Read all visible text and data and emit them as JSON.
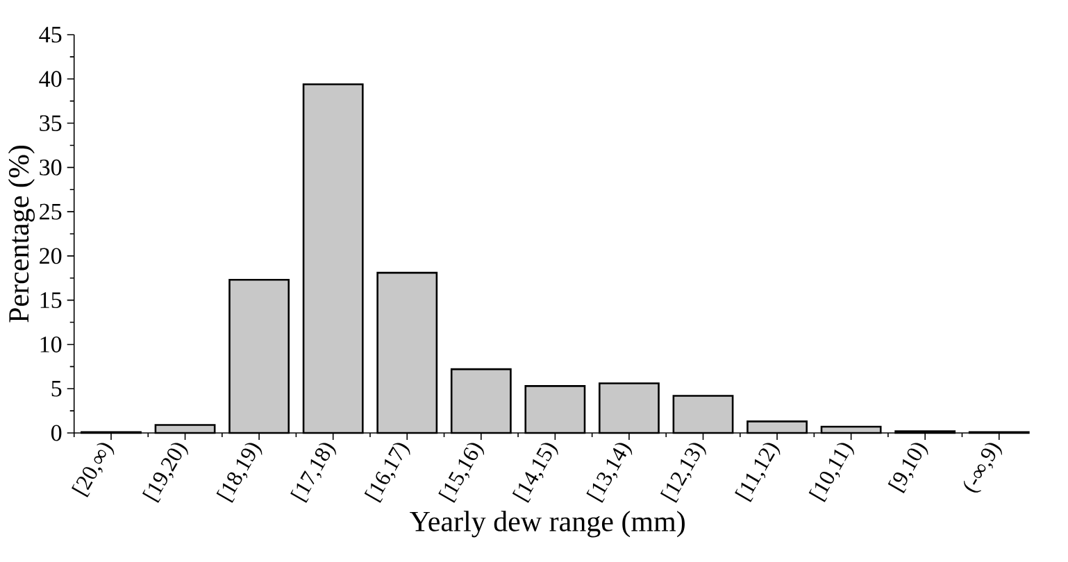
{
  "chart_data": {
    "type": "bar",
    "xlabel": "Yearly dew range (mm)",
    "ylabel": "Percentage (%)",
    "categories": [
      "[20,∞)",
      "[19,20)",
      "[18,19)",
      "[17,18)",
      "[16,17)",
      "[15,16)",
      "[14,15)",
      "[13,14)",
      "[12,13)",
      "[11,12)",
      "[10,11)",
      "[9,10)",
      "(-∞,9)"
    ],
    "values": [
      0.1,
      0.9,
      17.3,
      39.4,
      18.1,
      7.2,
      5.3,
      5.6,
      4.2,
      1.3,
      0.7,
      0.2,
      0.1
    ],
    "color": "#c8c8c8",
    "ylim": [
      0,
      45
    ],
    "yticks": [
      0,
      5,
      10,
      15,
      20,
      25,
      30,
      35,
      40,
      45
    ]
  }
}
